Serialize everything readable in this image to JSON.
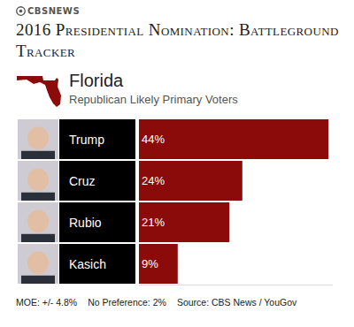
{
  "logo": "CBSNEWS",
  "chart_data": {
    "type": "bar",
    "orientation": "horizontal",
    "title": "2016 Presidential Nomination: Battleground Tracker",
    "subtitle": "Florida",
    "annotations": [
      "Republican Likely Primary Voters",
      "MOE: +/- 4.8%",
      "No Preference: 2%",
      "Source: CBS News / YouGov"
    ],
    "categories": [
      "Trump",
      "Cruz",
      "Rubio",
      "Kasich"
    ],
    "values": [
      44,
      24,
      21,
      9
    ],
    "value_labels": [
      "44%",
      "24%",
      "21%",
      "9%"
    ],
    "data_labels": true,
    "color": "#8b0a0a",
    "xlim": [
      0,
      45
    ],
    "tick_labels": false,
    "grid": false
  }
}
